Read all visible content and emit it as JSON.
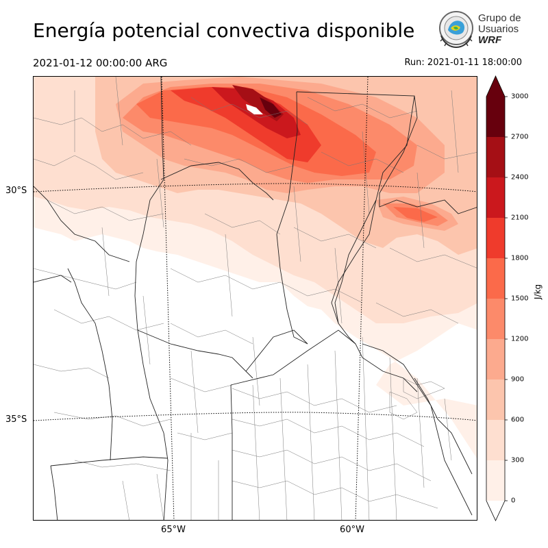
{
  "header": {
    "title": "Energía potencial convectiva disponible",
    "valid_time": "2021-01-12 00:00:00 ARG",
    "run_time": "Run: 2021-01-11 18:00:00"
  },
  "logo": {
    "line1": "Grupo de",
    "line2": "Usuarios",
    "line3": "WRF"
  },
  "map": {
    "lat_labels": [
      "30°S",
      "35°S"
    ],
    "lon_labels": [
      "65°W",
      "60°W"
    ]
  },
  "colorbar": {
    "unit": "J/kg",
    "ticks": [
      "3000",
      "2700",
      "2400",
      "2100",
      "1800",
      "1500",
      "1200",
      "900",
      "600",
      "300",
      "0"
    ],
    "colors": [
      "#67000d",
      "#a50f15",
      "#cb181d",
      "#ef3b2c",
      "#fb6a4a",
      "#fc8a6a",
      "#fcaa8e",
      "#fcc5ad",
      "#fedfd0",
      "#fff0e8"
    ]
  }
}
